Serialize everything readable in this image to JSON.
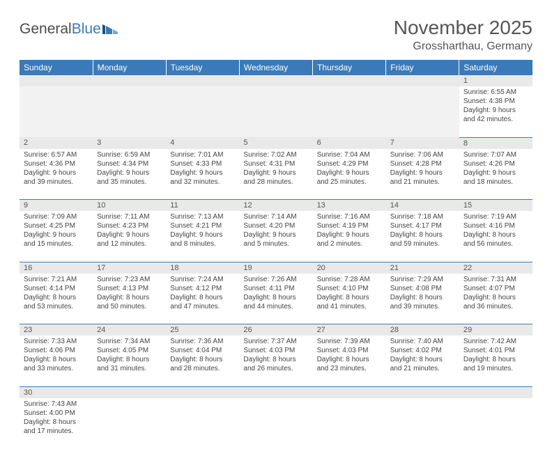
{
  "brand": {
    "part1": "General",
    "part2": "Blue"
  },
  "title": "November 2025",
  "location": "Grossharthau, Germany",
  "colors": {
    "accent": "#3a7ab8",
    "header_bg": "#3a7ab8",
    "daynum_bg": "#e9e9e9",
    "text": "#444444"
  },
  "day_headers": [
    "Sunday",
    "Monday",
    "Tuesday",
    "Wednesday",
    "Thursday",
    "Friday",
    "Saturday"
  ],
  "weeks": [
    [
      null,
      null,
      null,
      null,
      null,
      null,
      {
        "n": "1",
        "sr": "Sunrise: 6:55 AM",
        "ss": "Sunset: 4:38 PM",
        "dl": "Daylight: 9 hours and 42 minutes."
      }
    ],
    [
      {
        "n": "2",
        "sr": "Sunrise: 6:57 AM",
        "ss": "Sunset: 4:36 PM",
        "dl": "Daylight: 9 hours and 39 minutes."
      },
      {
        "n": "3",
        "sr": "Sunrise: 6:59 AM",
        "ss": "Sunset: 4:34 PM",
        "dl": "Daylight: 9 hours and 35 minutes."
      },
      {
        "n": "4",
        "sr": "Sunrise: 7:01 AM",
        "ss": "Sunset: 4:33 PM",
        "dl": "Daylight: 9 hours and 32 minutes."
      },
      {
        "n": "5",
        "sr": "Sunrise: 7:02 AM",
        "ss": "Sunset: 4:31 PM",
        "dl": "Daylight: 9 hours and 28 minutes."
      },
      {
        "n": "6",
        "sr": "Sunrise: 7:04 AM",
        "ss": "Sunset: 4:29 PM",
        "dl": "Daylight: 9 hours and 25 minutes."
      },
      {
        "n": "7",
        "sr": "Sunrise: 7:06 AM",
        "ss": "Sunset: 4:28 PM",
        "dl": "Daylight: 9 hours and 21 minutes."
      },
      {
        "n": "8",
        "sr": "Sunrise: 7:07 AM",
        "ss": "Sunset: 4:26 PM",
        "dl": "Daylight: 9 hours and 18 minutes."
      }
    ],
    [
      {
        "n": "9",
        "sr": "Sunrise: 7:09 AM",
        "ss": "Sunset: 4:25 PM",
        "dl": "Daylight: 9 hours and 15 minutes."
      },
      {
        "n": "10",
        "sr": "Sunrise: 7:11 AM",
        "ss": "Sunset: 4:23 PM",
        "dl": "Daylight: 9 hours and 12 minutes."
      },
      {
        "n": "11",
        "sr": "Sunrise: 7:13 AM",
        "ss": "Sunset: 4:21 PM",
        "dl": "Daylight: 9 hours and 8 minutes."
      },
      {
        "n": "12",
        "sr": "Sunrise: 7:14 AM",
        "ss": "Sunset: 4:20 PM",
        "dl": "Daylight: 9 hours and 5 minutes."
      },
      {
        "n": "13",
        "sr": "Sunrise: 7:16 AM",
        "ss": "Sunset: 4:19 PM",
        "dl": "Daylight: 9 hours and 2 minutes."
      },
      {
        "n": "14",
        "sr": "Sunrise: 7:18 AM",
        "ss": "Sunset: 4:17 PM",
        "dl": "Daylight: 8 hours and 59 minutes."
      },
      {
        "n": "15",
        "sr": "Sunrise: 7:19 AM",
        "ss": "Sunset: 4:16 PM",
        "dl": "Daylight: 8 hours and 56 minutes."
      }
    ],
    [
      {
        "n": "16",
        "sr": "Sunrise: 7:21 AM",
        "ss": "Sunset: 4:14 PM",
        "dl": "Daylight: 8 hours and 53 minutes."
      },
      {
        "n": "17",
        "sr": "Sunrise: 7:23 AM",
        "ss": "Sunset: 4:13 PM",
        "dl": "Daylight: 8 hours and 50 minutes."
      },
      {
        "n": "18",
        "sr": "Sunrise: 7:24 AM",
        "ss": "Sunset: 4:12 PM",
        "dl": "Daylight: 8 hours and 47 minutes."
      },
      {
        "n": "19",
        "sr": "Sunrise: 7:26 AM",
        "ss": "Sunset: 4:11 PM",
        "dl": "Daylight: 8 hours and 44 minutes."
      },
      {
        "n": "20",
        "sr": "Sunrise: 7:28 AM",
        "ss": "Sunset: 4:10 PM",
        "dl": "Daylight: 8 hours and 41 minutes."
      },
      {
        "n": "21",
        "sr": "Sunrise: 7:29 AM",
        "ss": "Sunset: 4:08 PM",
        "dl": "Daylight: 8 hours and 39 minutes."
      },
      {
        "n": "22",
        "sr": "Sunrise: 7:31 AM",
        "ss": "Sunset: 4:07 PM",
        "dl": "Daylight: 8 hours and 36 minutes."
      }
    ],
    [
      {
        "n": "23",
        "sr": "Sunrise: 7:33 AM",
        "ss": "Sunset: 4:06 PM",
        "dl": "Daylight: 8 hours and 33 minutes."
      },
      {
        "n": "24",
        "sr": "Sunrise: 7:34 AM",
        "ss": "Sunset: 4:05 PM",
        "dl": "Daylight: 8 hours and 31 minutes."
      },
      {
        "n": "25",
        "sr": "Sunrise: 7:36 AM",
        "ss": "Sunset: 4:04 PM",
        "dl": "Daylight: 8 hours and 28 minutes."
      },
      {
        "n": "26",
        "sr": "Sunrise: 7:37 AM",
        "ss": "Sunset: 4:03 PM",
        "dl": "Daylight: 8 hours and 26 minutes."
      },
      {
        "n": "27",
        "sr": "Sunrise: 7:39 AM",
        "ss": "Sunset: 4:03 PM",
        "dl": "Daylight: 8 hours and 23 minutes."
      },
      {
        "n": "28",
        "sr": "Sunrise: 7:40 AM",
        "ss": "Sunset: 4:02 PM",
        "dl": "Daylight: 8 hours and 21 minutes."
      },
      {
        "n": "29",
        "sr": "Sunrise: 7:42 AM",
        "ss": "Sunset: 4:01 PM",
        "dl": "Daylight: 8 hours and 19 minutes."
      }
    ],
    [
      {
        "n": "30",
        "sr": "Sunrise: 7:43 AM",
        "ss": "Sunset: 4:00 PM",
        "dl": "Daylight: 8 hours and 17 minutes."
      },
      null,
      null,
      null,
      null,
      null,
      null
    ]
  ]
}
